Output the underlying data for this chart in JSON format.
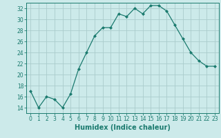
{
  "x": [
    0,
    1,
    2,
    3,
    4,
    5,
    6,
    7,
    8,
    9,
    10,
    11,
    12,
    13,
    14,
    15,
    16,
    17,
    18,
    19,
    20,
    21,
    22,
    23
  ],
  "y": [
    17,
    14,
    16,
    15.5,
    14,
    16.5,
    21,
    24,
    27,
    28.5,
    28.5,
    31,
    30.5,
    32,
    31,
    32.5,
    32.5,
    31.5,
    29,
    26.5,
    24,
    22.5,
    21.5,
    21.5
  ],
  "line_color": "#1a7a6e",
  "marker": "D",
  "marker_size": 2.0,
  "bg_color": "#cceaea",
  "grid_color": "#aacccc",
  "xlabel": "Humidex (Indice chaleur)",
  "xlim": [
    -0.5,
    23.5
  ],
  "ylim": [
    13,
    33
  ],
  "yticks": [
    14,
    16,
    18,
    20,
    22,
    24,
    26,
    28,
    30,
    32
  ],
  "xticks": [
    0,
    1,
    2,
    3,
    4,
    5,
    6,
    7,
    8,
    9,
    10,
    11,
    12,
    13,
    14,
    15,
    16,
    17,
    18,
    19,
    20,
    21,
    22,
    23
  ],
  "tick_fontsize": 5.5,
  "xlabel_fontsize": 7.0
}
